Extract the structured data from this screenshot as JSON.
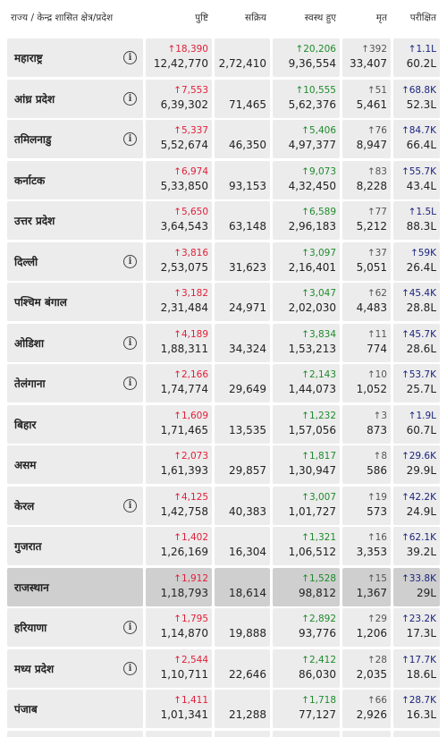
{
  "table": {
    "header": [
      "राज्य / केन्द्र शासित क्षेत्र/प्रदेश",
      "पुष्टि",
      "सक्रिय",
      "स्वस्थ हुए",
      "मृत",
      "परीक्षित"
    ],
    "rows": [
      {
        "state": "महाराष्ट्र",
        "info": true,
        "confirmed_delta": "↑18,390",
        "confirmed": "12,42,770",
        "active": "2,72,410",
        "recovered_delta": "↑20,206",
        "recovered": "9,36,554",
        "deceased_delta": "↑392",
        "deceased": "33,407",
        "tested_delta": "↑1.1L",
        "tested": "60.2L"
      },
      {
        "state": "आंध्र प्रदेश",
        "info": true,
        "confirmed_delta": "↑7,553",
        "confirmed": "6,39,302",
        "active": "71,465",
        "recovered_delta": "↑10,555",
        "recovered": "5,62,376",
        "deceased_delta": "↑51",
        "deceased": "5,461",
        "tested_delta": "↑68.8K",
        "tested": "52.3L"
      },
      {
        "state": "तमिलनाडु",
        "info": true,
        "confirmed_delta": "↑5,337",
        "confirmed": "5,52,674",
        "active": "46,350",
        "recovered_delta": "↑5,406",
        "recovered": "4,97,377",
        "deceased_delta": "↑76",
        "deceased": "8,947",
        "tested_delta": "↑84.7K",
        "tested": "66.4L"
      },
      {
        "state": "कर्नाटक",
        "info": false,
        "confirmed_delta": "↑6,974",
        "confirmed": "5,33,850",
        "active": "93,153",
        "recovered_delta": "↑9,073",
        "recovered": "4,32,450",
        "deceased_delta": "↑83",
        "deceased": "8,228",
        "tested_delta": "↑55.7K",
        "tested": "43.4L"
      },
      {
        "state": "उत्तर प्रदेश",
        "info": false,
        "confirmed_delta": "↑5,650",
        "confirmed": "3,64,543",
        "active": "63,148",
        "recovered_delta": "↑6,589",
        "recovered": "2,96,183",
        "deceased_delta": "↑77",
        "deceased": "5,212",
        "tested_delta": "↑1.5L",
        "tested": "88.3L"
      },
      {
        "state": "दिल्ली",
        "info": true,
        "confirmed_delta": "↑3,816",
        "confirmed": "2,53,075",
        "active": "31,623",
        "recovered_delta": "↑3,097",
        "recovered": "2,16,401",
        "deceased_delta": "↑37",
        "deceased": "5,051",
        "tested_delta": "↑59K",
        "tested": "26.4L"
      },
      {
        "state": "पश्चिम बंगाल",
        "info": false,
        "confirmed_delta": "↑3,182",
        "confirmed": "2,31,484",
        "active": "24,971",
        "recovered_delta": "↑3,047",
        "recovered": "2,02,030",
        "deceased_delta": "↑62",
        "deceased": "4,483",
        "tested_delta": "↑45.4K",
        "tested": "28.8L"
      },
      {
        "state": "ओडिशा",
        "info": true,
        "confirmed_delta": "↑4,189",
        "confirmed": "1,88,311",
        "active": "34,324",
        "recovered_delta": "↑3,834",
        "recovered": "1,53,213",
        "deceased_delta": "↑11",
        "deceased": "774",
        "tested_delta": "↑45.7K",
        "tested": "28.6L"
      },
      {
        "state": "तेलंगाना",
        "info": true,
        "confirmed_delta": "↑2,166",
        "confirmed": "1,74,774",
        "active": "29,649",
        "recovered_delta": "↑2,143",
        "recovered": "1,44,073",
        "deceased_delta": "↑10",
        "deceased": "1,052",
        "tested_delta": "↑53.7K",
        "tested": "25.7L"
      },
      {
        "state": "बिहार",
        "info": false,
        "confirmed_delta": "↑1,609",
        "confirmed": "1,71,465",
        "active": "13,535",
        "recovered_delta": "↑1,232",
        "recovered": "1,57,056",
        "deceased_delta": "↑3",
        "deceased": "873",
        "tested_delta": "↑1.9L",
        "tested": "60.7L"
      },
      {
        "state": "असम",
        "info": false,
        "confirmed_delta": "↑2,073",
        "confirmed": "1,61,393",
        "active": "29,857",
        "recovered_delta": "↑1,817",
        "recovered": "1,30,947",
        "deceased_delta": "↑8",
        "deceased": "586",
        "tested_delta": "↑29.6K",
        "tested": "29.9L"
      },
      {
        "state": "केरल",
        "info": true,
        "confirmed_delta": "↑4,125",
        "confirmed": "1,42,758",
        "active": "40,383",
        "recovered_delta": "↑3,007",
        "recovered": "1,01,727",
        "deceased_delta": "↑19",
        "deceased": "573",
        "tested_delta": "↑42.2K",
        "tested": "24.9L"
      },
      {
        "state": "गुजरात",
        "info": false,
        "confirmed_delta": "↑1,402",
        "confirmed": "1,26,169",
        "active": "16,304",
        "recovered_delta": "↑1,321",
        "recovered": "1,06,512",
        "deceased_delta": "↑16",
        "deceased": "3,353",
        "tested_delta": "↑62.1K",
        "tested": "39.2L"
      },
      {
        "state": "राजस्थान",
        "info": false,
        "highlighted": true,
        "confirmed_delta": "↑1,912",
        "confirmed": "1,18,793",
        "active": "18,614",
        "recovered_delta": "↑1,528",
        "recovered": "98,812",
        "deceased_delta": "↑15",
        "deceased": "1,367",
        "tested_delta": "↑33.8K",
        "tested": "29L"
      },
      {
        "state": "हरियाणा",
        "info": true,
        "confirmed_delta": "↑1,795",
        "confirmed": "1,14,870",
        "active": "19,888",
        "recovered_delta": "↑2,892",
        "recovered": "93,776",
        "deceased_delta": "↑29",
        "deceased": "1,206",
        "tested_delta": "↑23.2K",
        "tested": "17.3L"
      },
      {
        "state": "मध्य प्रदेश",
        "info": true,
        "confirmed_delta": "↑2,544",
        "confirmed": "1,10,711",
        "active": "22,646",
        "recovered_delta": "↑2,412",
        "recovered": "86,030",
        "deceased_delta": "↑28",
        "deceased": "2,035",
        "tested_delta": "↑17.7K",
        "tested": "18.6L"
      },
      {
        "state": "पंजाब",
        "info": false,
        "confirmed_delta": "↑1,411",
        "confirmed": "1,01,341",
        "active": "21,288",
        "recovered_delta": "↑1,718",
        "recovered": "77,127",
        "deceased_delta": "↑66",
        "deceased": "2,926",
        "tested_delta": "↑28.7K",
        "tested": "16.3L"
      }
    ]
  }
}
